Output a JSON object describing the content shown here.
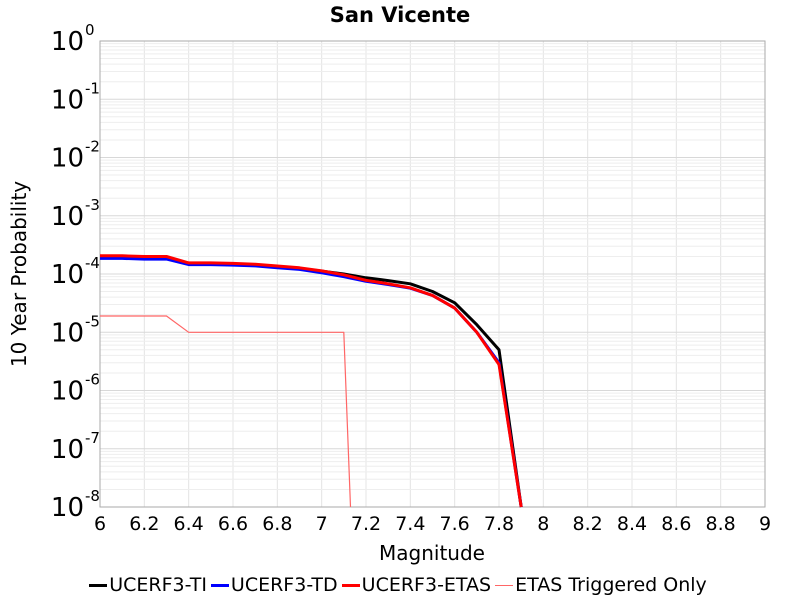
{
  "chart_data": {
    "type": "line",
    "title": "San Vicente",
    "xlabel": "Magnitude",
    "ylabel": "10 Year Probability",
    "xlim": [
      6,
      9
    ],
    "ylim": [
      1e-08,
      1
    ],
    "yscale": "log",
    "grid": true,
    "legend_position": "bottom",
    "x_ticks": [
      "6",
      "6.2",
      "6.4",
      "6.6",
      "6.8",
      "7",
      "7.2",
      "7.4",
      "7.6",
      "7.8",
      "8",
      "8.2",
      "8.4",
      "8.6",
      "8.8",
      "9"
    ],
    "y_ticks": [
      {
        "base": "10",
        "exp": "-8"
      },
      {
        "base": "10",
        "exp": "-7"
      },
      {
        "base": "10",
        "exp": "-6"
      },
      {
        "base": "10",
        "exp": "-5"
      },
      {
        "base": "10",
        "exp": "-4"
      },
      {
        "base": "10",
        "exp": "-3"
      },
      {
        "base": "10",
        "exp": "-2"
      },
      {
        "base": "10",
        "exp": "-1"
      },
      {
        "base": "10",
        "exp": "0"
      }
    ],
    "series": [
      {
        "name": "UCERF3-TI",
        "color": "#000000",
        "width": 3,
        "x": [
          6.0,
          6.1,
          6.2,
          6.3,
          6.4,
          6.5,
          6.6,
          6.7,
          6.8,
          6.9,
          7.0,
          7.1,
          7.2,
          7.3,
          7.4,
          7.5,
          7.6,
          7.7,
          7.8,
          7.9
        ],
        "y": [
          0.00019,
          0.00019,
          0.000185,
          0.000185,
          0.00015,
          0.00015,
          0.000148,
          0.000143,
          0.000133,
          0.000125,
          0.000112,
          0.0001,
          8.6e-05,
          7.7e-05,
          6.8e-05,
          5e-05,
          3.2e-05,
          1.35e-05,
          5e-06,
          1e-08
        ]
      },
      {
        "name": "UCERF3-TD",
        "color": "#0000ff",
        "width": 3,
        "x": [
          6.0,
          6.1,
          6.2,
          6.3,
          6.4,
          6.5,
          6.6,
          6.7,
          6.8,
          6.9,
          7.0,
          7.1,
          7.2,
          7.3,
          7.4,
          7.5,
          7.6,
          7.7,
          7.8,
          7.9
        ],
        "y": [
          0.000185,
          0.000185,
          0.00018,
          0.00018,
          0.000145,
          0.000145,
          0.000142,
          0.000138,
          0.000128,
          0.00012,
          0.000105,
          9e-05,
          7.5e-05,
          6.6e-05,
          5.7e-05,
          4.3e-05,
          2.6e-05,
          1e-05,
          3e-06,
          1e-08
        ]
      },
      {
        "name": "UCERF3-ETAS",
        "color": "#ff0000",
        "width": 3,
        "x": [
          6.0,
          6.1,
          6.2,
          6.3,
          6.4,
          6.5,
          6.6,
          6.7,
          6.8,
          6.9,
          7.0,
          7.1,
          7.2,
          7.3,
          7.4,
          7.5,
          7.6,
          7.7,
          7.8,
          7.9
        ],
        "y": [
          0.000205,
          0.000205,
          0.0002,
          0.0002,
          0.000155,
          0.000155,
          0.000152,
          0.000147,
          0.000137,
          0.000128,
          0.000113,
          9.7e-05,
          7.8e-05,
          6.8e-05,
          5.8e-05,
          4.3e-05,
          2.6e-05,
          1e-05,
          2.8e-06,
          1e-08
        ]
      },
      {
        "name": "ETAS Triggered Only",
        "color": "#ff6666",
        "width": 1.2,
        "x": [
          6.0,
          6.1,
          6.2,
          6.3,
          6.4,
          6.5,
          6.6,
          6.7,
          6.8,
          6.9,
          7.0,
          7.1,
          7.13
        ],
        "y": [
          1.9e-05,
          1.9e-05,
          1.9e-05,
          1.9e-05,
          1e-05,
          1e-05,
          1e-05,
          1e-05,
          1e-05,
          1e-05,
          1e-05,
          1e-05,
          1e-08
        ]
      }
    ]
  }
}
